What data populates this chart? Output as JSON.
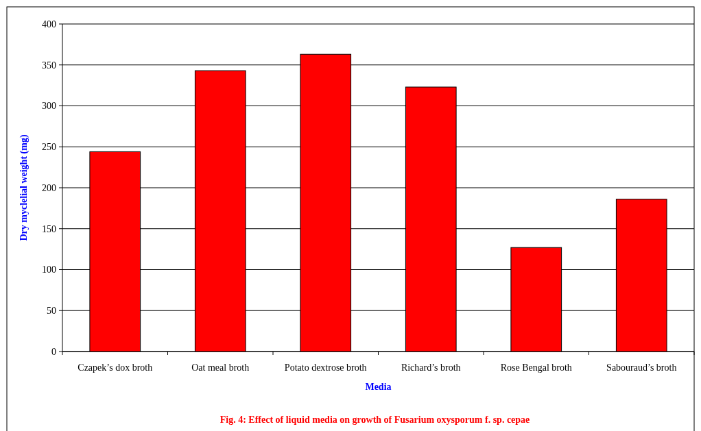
{
  "chart_data": {
    "type": "bar",
    "title": "Fig. 4: Effect of liquid media on growth of Fusarium oxysporum  f. sp. cepae",
    "xlabel": "Media",
    "ylabel": "Dry myclelial weight (mg)",
    "categories": [
      "Czapek’s dox broth",
      "Oat meal broth",
      "Potato dextrose broth",
      "Richard’s broth",
      "Rose Bengal broth",
      "Sabouraud’s broth"
    ],
    "values": [
      244,
      343,
      363,
      323,
      127,
      186
    ],
    "color": "#ff0000",
    "ylim": [
      0,
      400
    ],
    "yticks": [
      0,
      50,
      100,
      150,
      200,
      250,
      300,
      350,
      400
    ],
    "grid": "y"
  }
}
